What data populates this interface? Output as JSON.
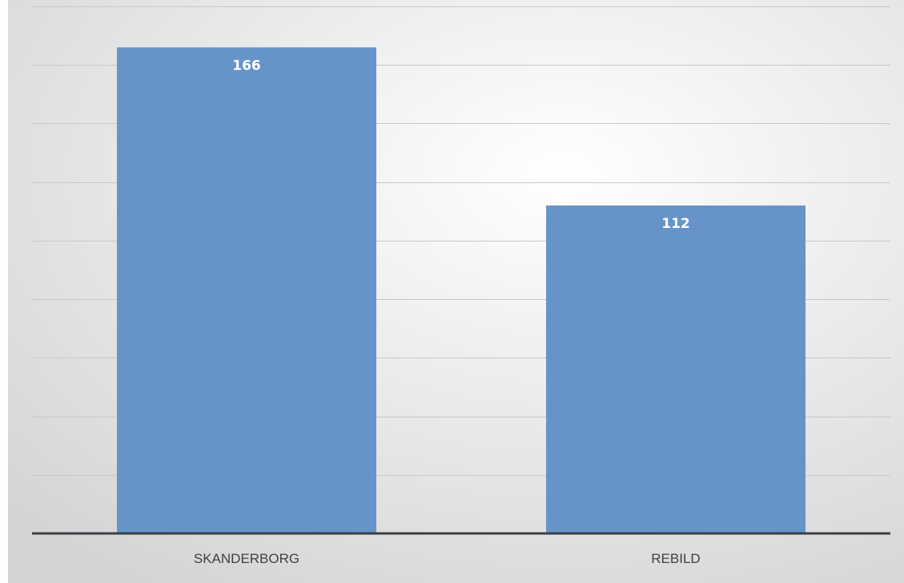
{
  "chart_data": {
    "type": "bar",
    "categories": [
      "SKANDERBORG",
      "REBILD"
    ],
    "values": [
      166,
      112
    ],
    "ylim": [
      0,
      180
    ],
    "gridline_step": 20,
    "grid": true,
    "data_labels": true,
    "legend": "none",
    "colors": {
      "bar": "#6794c8",
      "gridline": "#c8c8c8",
      "axis": "#3a3f44",
      "background_center": "#ffffff",
      "background_edge": "#d4d4d4",
      "label_text": "#404040",
      "data_label_text": "#ffffff"
    }
  }
}
